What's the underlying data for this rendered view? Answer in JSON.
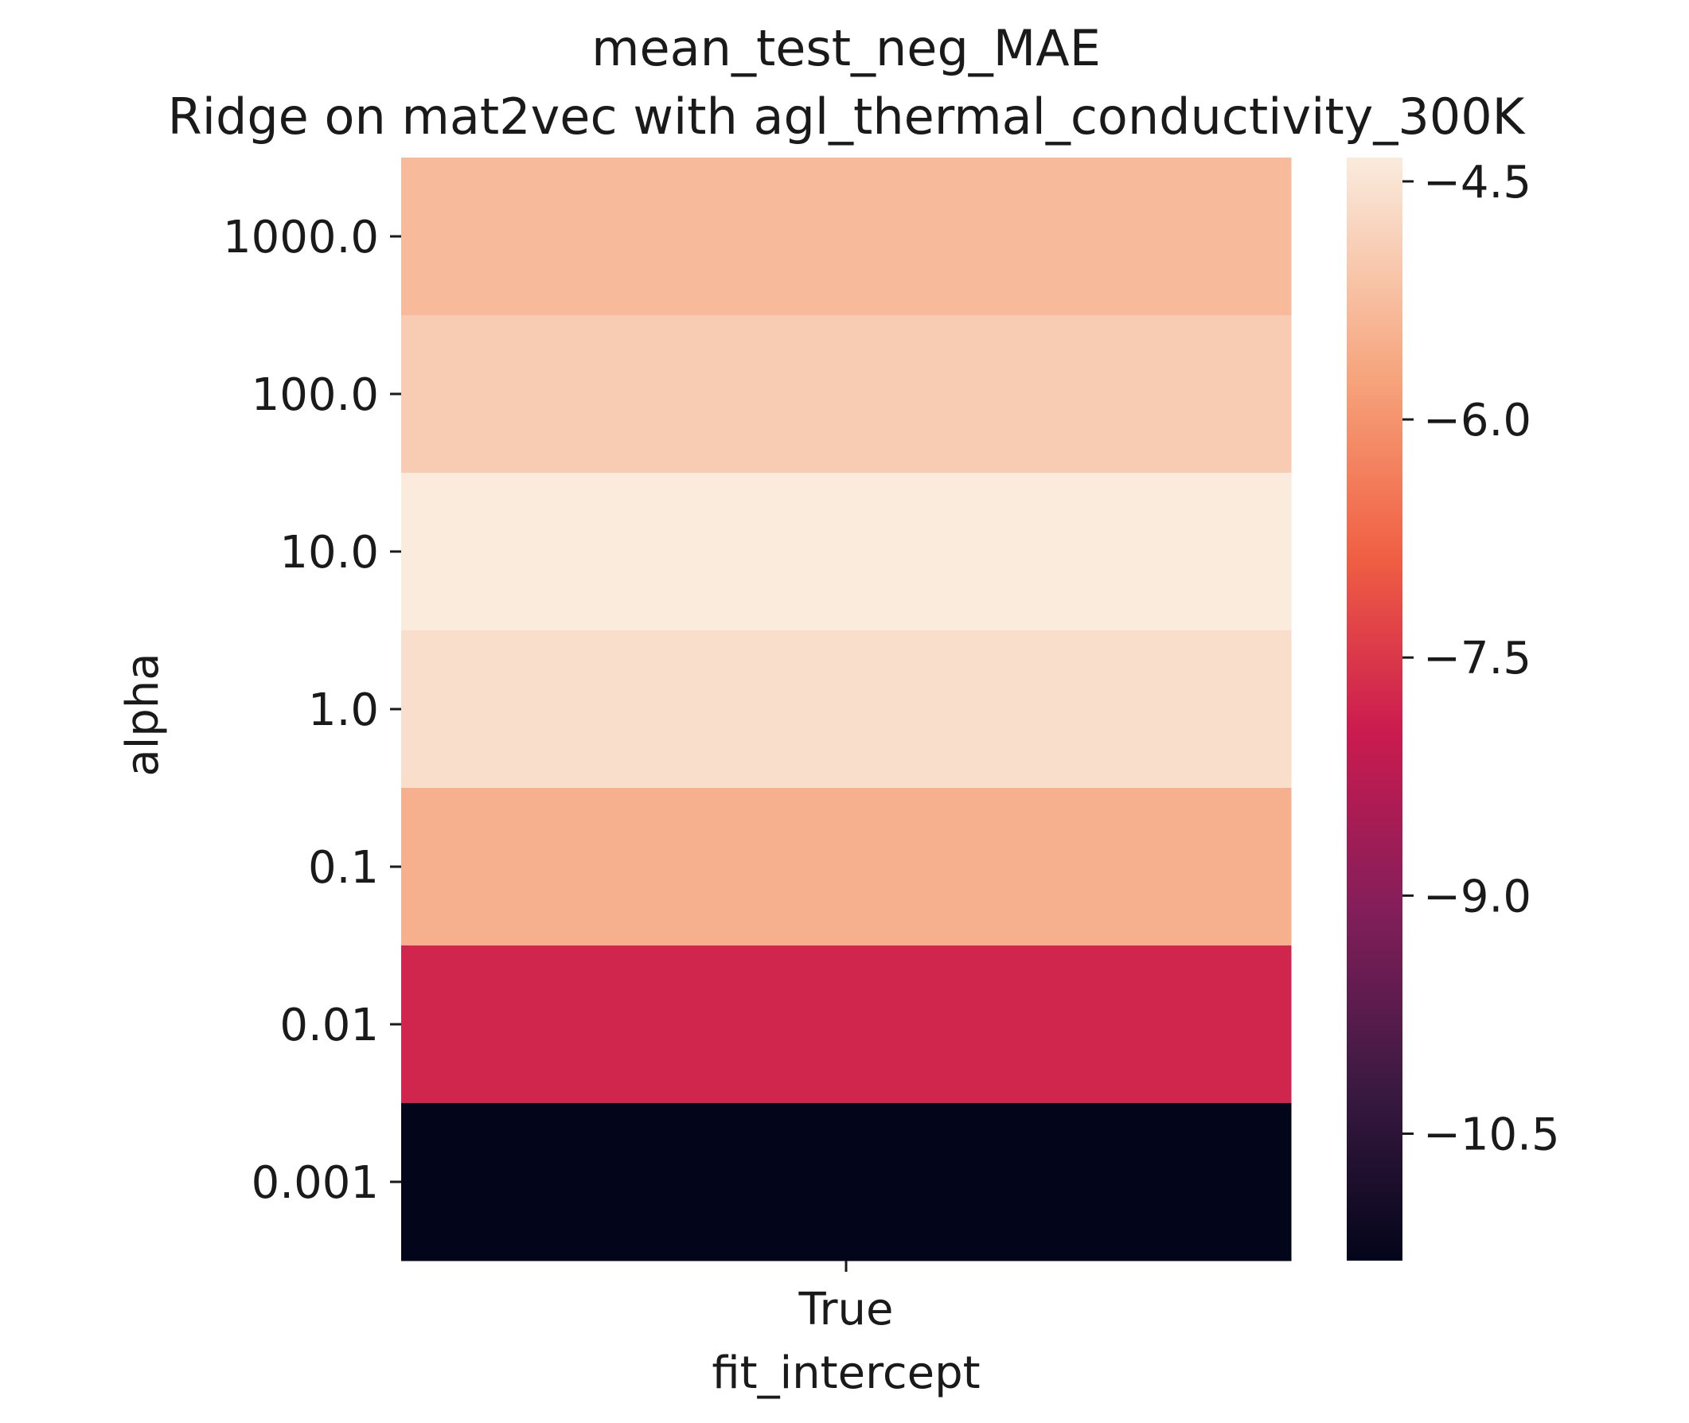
{
  "chart_data": {
    "type": "heatmap",
    "title": "mean_test_neg_MAE",
    "subtitle": "Ridge on mat2vec with agl_thermal_conductivity_300K",
    "xlabel": "fit_intercept",
    "ylabel": "alpha",
    "x_categories": [
      "True"
    ],
    "y_categories": [
      "1000.0",
      "100.0",
      "10.0",
      "1.0",
      "0.1",
      "0.01",
      "0.001"
    ],
    "values": [
      [
        -5.3
      ],
      [
        -4.95
      ],
      [
        -4.35
      ],
      [
        -4.6
      ],
      [
        -5.5
      ],
      [
        -7.8
      ],
      [
        -11.3
      ]
    ],
    "colormap": "rocket",
    "colorbar": {
      "range": [
        -11.3,
        -4.35
      ],
      "ticks": [
        -4.5,
        -6.0,
        -7.5,
        -9.0,
        -10.5
      ],
      "tick_labels": [
        "−4.5",
        "−6.0",
        "−7.5",
        "−9.0",
        "−10.5"
      ]
    }
  }
}
